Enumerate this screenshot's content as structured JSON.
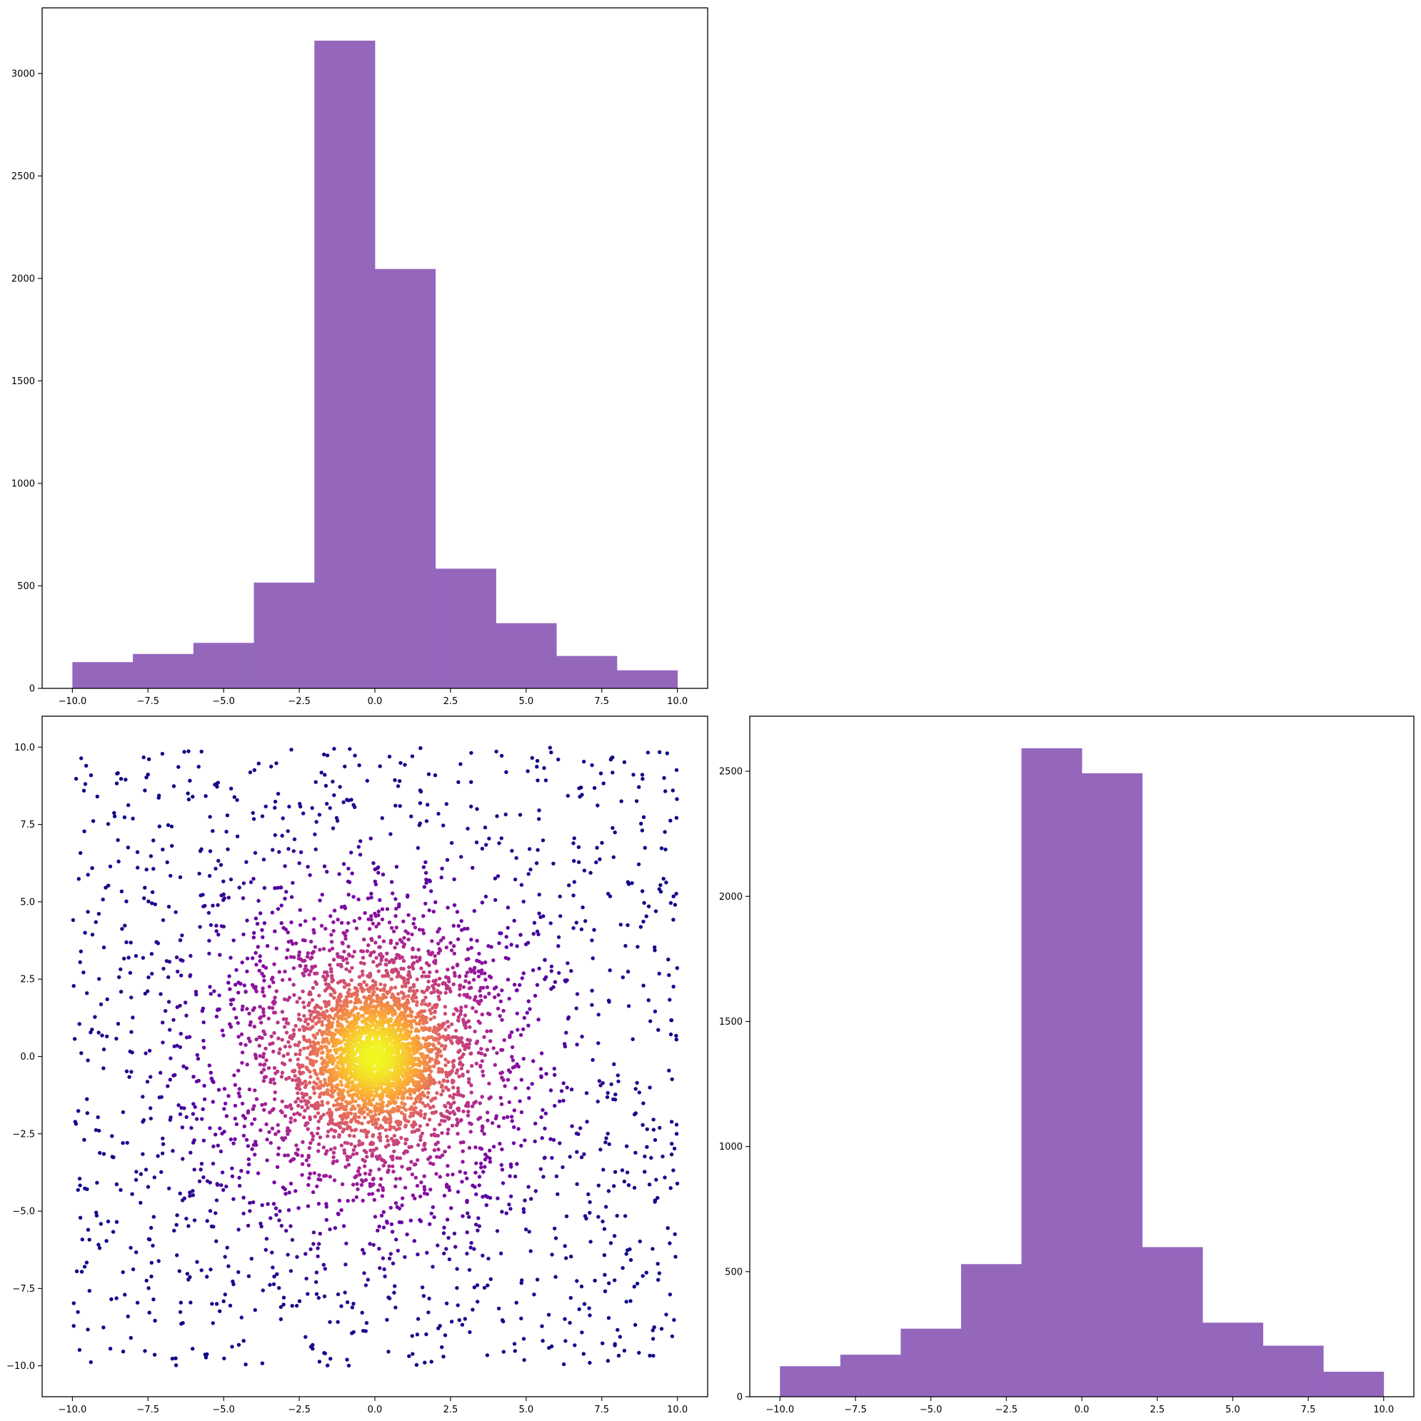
{
  "figure": {
    "background": "#ffffff"
  },
  "chart_data": [
    {
      "id": "hist-x",
      "type": "bar",
      "subtype": "histogram",
      "color": "#9467bd",
      "bin_edges": [
        -10,
        -8,
        -6,
        -4,
        -2,
        0,
        2,
        4,
        6,
        8,
        10
      ],
      "values": [
        128,
        168,
        222,
        516,
        3160,
        2046,
        584,
        318,
        158,
        88
      ],
      "xlim": [
        -11,
        11
      ],
      "ylim": [
        0,
        3320
      ],
      "xticks": [
        -10,
        -7.5,
        -5,
        -2.5,
        0,
        2.5,
        5,
        7.5,
        10
      ],
      "xtick_labels": [
        "−10.0",
        "−7.5",
        "−5.0",
        "−2.5",
        "0.0",
        "2.5",
        "5.0",
        "7.5",
        "10.0"
      ],
      "yticks": [
        0,
        500,
        1000,
        1500,
        2000,
        2500,
        3000
      ],
      "ytick_labels": [
        "0",
        "500",
        "1000",
        "1500",
        "2000",
        "2500",
        "3000"
      ],
      "title": "",
      "xlabel": "",
      "ylabel": "",
      "grid": false
    },
    {
      "id": "scatter-xy",
      "type": "scatter",
      "colormap": [
        "#0d0887",
        "#6a00a8",
        "#b12a90",
        "#e16462",
        "#fca636",
        "#f0f921"
      ],
      "color_by": "point density",
      "point_count": 5000,
      "distribution": "dense Gaussian core centred at (0, 0) over a uniform background on [-10, 10] x [-10, 10]",
      "xlim": [
        -11,
        11
      ],
      "ylim": [
        -11,
        11
      ],
      "xticks": [
        -10,
        -7.5,
        -5,
        -2.5,
        0,
        2.5,
        5,
        7.5,
        10
      ],
      "xtick_labels": [
        "−10.0",
        "−7.5",
        "−5.0",
        "−2.5",
        "0.0",
        "2.5",
        "5.0",
        "7.5",
        "10.0"
      ],
      "yticks": [
        -10,
        -7.5,
        -5,
        -2.5,
        0,
        2.5,
        5,
        7.5,
        10
      ],
      "ytick_labels": [
        "−10.0",
        "−7.5",
        "−5.0",
        "−2.5",
        "0.0",
        "2.5",
        "5.0",
        "7.5",
        "10.0"
      ],
      "title": "",
      "xlabel": "",
      "ylabel": "",
      "grid": false
    },
    {
      "id": "hist-y",
      "type": "bar",
      "subtype": "histogram",
      "color": "#9467bd",
      "bin_edges": [
        -10,
        -8,
        -6,
        -4,
        -2,
        0,
        2,
        4,
        6,
        8,
        10
      ],
      "values": [
        122,
        168,
        272,
        530,
        2592,
        2492,
        598,
        296,
        204,
        100
      ],
      "xlim": [
        -11,
        11
      ],
      "ylim": [
        0,
        2720
      ],
      "xticks": [
        -10,
        -7.5,
        -5,
        -2.5,
        0,
        2.5,
        5,
        7.5,
        10
      ],
      "xtick_labels": [
        "−10.0",
        "−7.5",
        "−5.0",
        "−2.5",
        "0.0",
        "2.5",
        "5.0",
        "7.5",
        "10.0"
      ],
      "yticks": [
        0,
        500,
        1000,
        1500,
        2000,
        2500
      ],
      "ytick_labels": [
        "0",
        "500",
        "1000",
        "1500",
        "2000",
        "2500"
      ],
      "title": "",
      "xlabel": "",
      "ylabel": "",
      "grid": false
    }
  ]
}
